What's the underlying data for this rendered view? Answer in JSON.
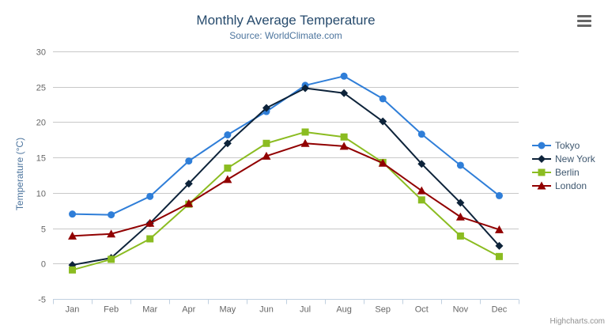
{
  "credit": "Highcharts.com",
  "chart_data": {
    "type": "line",
    "title": "Monthly Average Temperature",
    "subtitle": "Source: WorldClimate.com",
    "xlabel": "",
    "ylabel": "Temperature (°C)",
    "ylim": [
      -5,
      30
    ],
    "ytick_interval": 5,
    "grid": true,
    "legend_position": "right",
    "categories": [
      "Jan",
      "Feb",
      "Mar",
      "Apr",
      "May",
      "Jun",
      "Jul",
      "Aug",
      "Sep",
      "Oct",
      "Nov",
      "Dec"
    ],
    "series": [
      {
        "name": "Tokyo",
        "color": "#2f7ed8",
        "marker": "circle",
        "values": [
          7.0,
          6.9,
          9.5,
          14.5,
          18.2,
          21.5,
          25.2,
          26.5,
          23.3,
          18.3,
          13.9,
          9.6
        ]
      },
      {
        "name": "New York",
        "color": "#0d233a",
        "marker": "diamond",
        "values": [
          -0.2,
          0.8,
          5.7,
          11.3,
          17.0,
          22.0,
          24.8,
          24.1,
          20.1,
          14.1,
          8.6,
          2.5
        ]
      },
      {
        "name": "Berlin",
        "color": "#8bbc21",
        "marker": "square",
        "values": [
          -0.9,
          0.6,
          3.5,
          8.4,
          13.5,
          17.0,
          18.6,
          17.9,
          14.3,
          9.0,
          3.9,
          1.0
        ]
      },
      {
        "name": "London",
        "color": "#910000",
        "marker": "triangle",
        "values": [
          3.9,
          4.2,
          5.7,
          8.5,
          11.9,
          15.2,
          17.0,
          16.6,
          14.2,
          10.3,
          6.6,
          4.8
        ]
      }
    ],
    "colors": {
      "grid_line": "#C8C8C8",
      "axis_line": "#C0D0E0",
      "tick_label": "#666666",
      "title": "#274b6d",
      "subtitle": "#4d759e",
      "axis_title": "#4d759e",
      "legend_text": "#3E576F",
      "credit_text": "#909090",
      "menu_icon": "#666666"
    }
  }
}
